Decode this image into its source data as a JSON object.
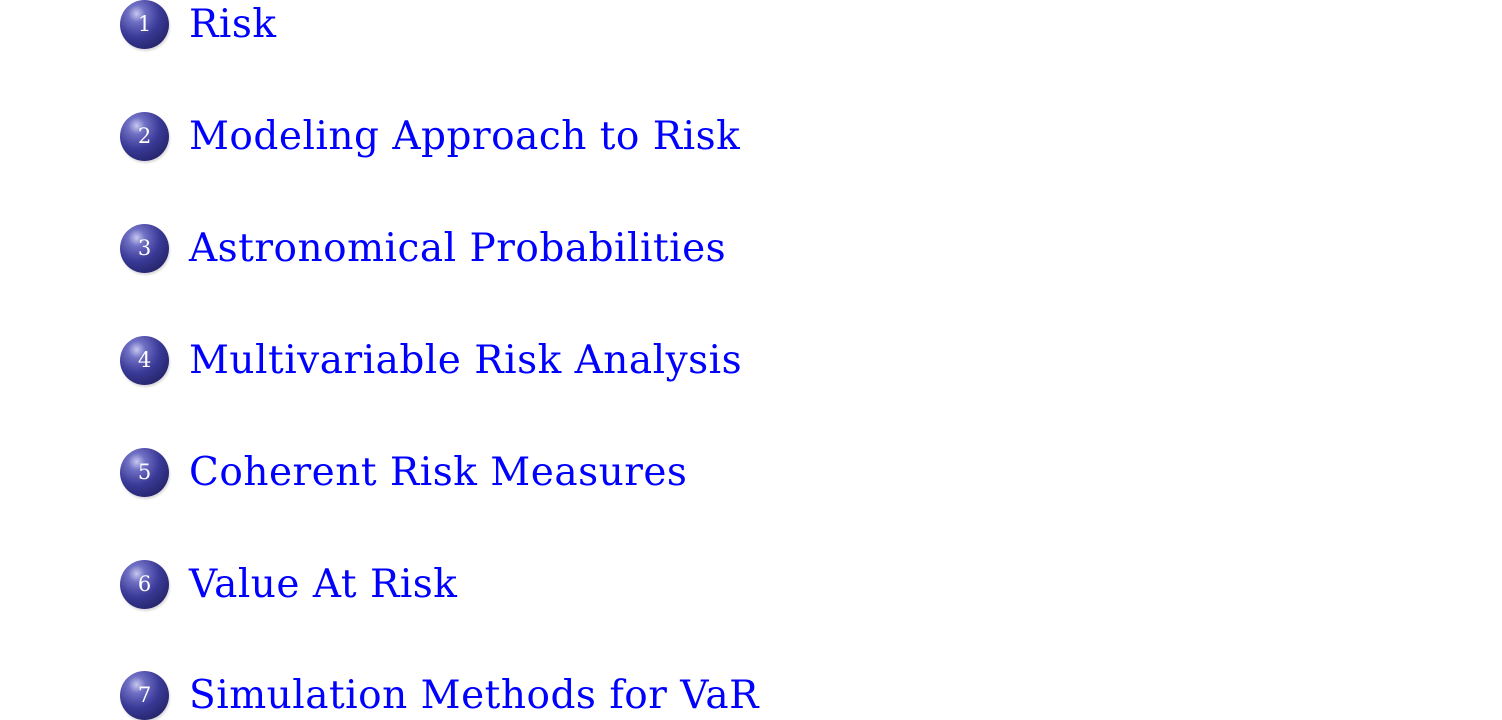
{
  "toc": {
    "items": [
      {
        "number": "1",
        "label": "Risk"
      },
      {
        "number": "2",
        "label": "Modeling Approach to Risk"
      },
      {
        "number": "3",
        "label": "Astronomical Probabilities"
      },
      {
        "number": "4",
        "label": "Multivariable Risk Analysis"
      },
      {
        "number": "5",
        "label": "Coherent Risk Measures"
      },
      {
        "number": "6",
        "label": "Value At Risk"
      },
      {
        "number": "7",
        "label": "Simulation Methods for VaR"
      }
    ]
  },
  "colors": {
    "link": "#0000ff",
    "ball": "#2e2e80",
    "background": "#ffffff"
  }
}
